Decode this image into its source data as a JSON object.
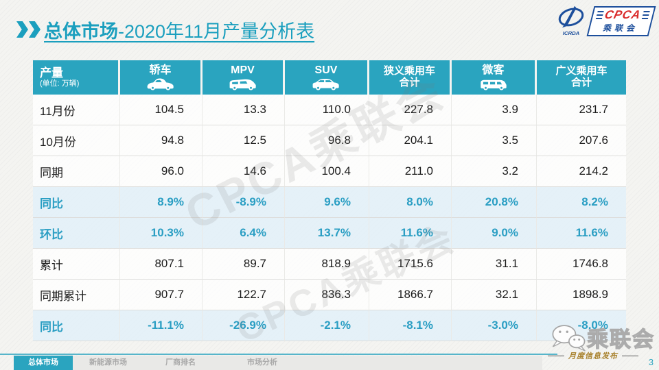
{
  "title": {
    "prefix": "总体市场",
    "suffix": "-2020年11月产量分析表"
  },
  "logo": {
    "emblem_text": "ICRDA",
    "acronym": "CPCA",
    "name": "乘联会"
  },
  "table": {
    "corner": {
      "label": "产量",
      "unit": "(单位: 万辆)"
    },
    "columns": [
      {
        "label": "轿车",
        "icon": "sedan-icon"
      },
      {
        "label": "MPV",
        "icon": "mpv-icon"
      },
      {
        "label": "SUV",
        "icon": "suv-icon"
      },
      {
        "label": "狭义乘用车",
        "sub": "合计"
      },
      {
        "label": "微客",
        "icon": "minibus-icon"
      },
      {
        "label": "广义乘用车",
        "sub": "合计"
      }
    ],
    "rows": [
      {
        "label": "11月份",
        "highlight": false,
        "values": [
          "104.5",
          "13.3",
          "110.0",
          "227.8",
          "3.9",
          "231.7"
        ]
      },
      {
        "label": "10月份",
        "highlight": false,
        "values": [
          "94.8",
          "12.5",
          "96.8",
          "204.1",
          "3.5",
          "207.6"
        ]
      },
      {
        "label": "同期",
        "highlight": false,
        "values": [
          "96.0",
          "14.6",
          "100.4",
          "211.0",
          "3.2",
          "214.2"
        ]
      },
      {
        "label": "同比",
        "highlight": true,
        "values": [
          "8.9%",
          "-8.9%",
          "9.6%",
          "8.0%",
          "20.8%",
          "8.2%"
        ]
      },
      {
        "label": "环比",
        "highlight": true,
        "values": [
          "10.3%",
          "6.4%",
          "13.7%",
          "11.6%",
          "9.0%",
          "11.6%"
        ]
      },
      {
        "label": "累计",
        "highlight": false,
        "values": [
          "807.1",
          "89.7",
          "818.9",
          "1715.6",
          "31.1",
          "1746.8"
        ]
      },
      {
        "label": "同期累计",
        "highlight": false,
        "values": [
          "907.7",
          "122.7",
          "836.3",
          "1866.7",
          "32.1",
          "1898.9"
        ]
      },
      {
        "label": "同比",
        "highlight": true,
        "values": [
          "-11.1%",
          "-26.9%",
          "-2.1%",
          "-8.1%",
          "-3.0%",
          "-8.0%"
        ]
      }
    ]
  },
  "watermark": "CPCA乘联会",
  "footer": {
    "tabs": [
      {
        "id": "overall-market",
        "label": "总体市场",
        "active": true
      },
      {
        "id": "nev-market",
        "label": "新能源市场",
        "active": false
      },
      {
        "id": "oem-ranking",
        "label": "厂商排名",
        "active": false
      },
      {
        "id": "market-analysis",
        "label": "市场分析",
        "active": false
      }
    ],
    "publication_label": "月度信息发布",
    "page_number": "3",
    "wechat_name": "乘联会"
  },
  "colors": {
    "teal": "#2aa4bf",
    "title_teal": "#1b9fbe",
    "highlight_row": "#e2f0f8",
    "highlight_text": "#2a9ec3",
    "gold": "#a8812c",
    "logo_blue": "#1d4f9c",
    "logo_red": "#d92b2b"
  }
}
